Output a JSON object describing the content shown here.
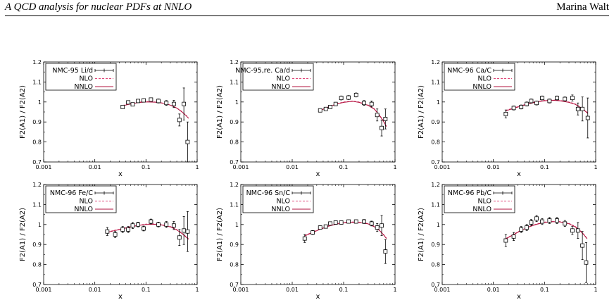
{
  "header": {
    "left": "A QCD analysis for nuclear PDFs at NNLO",
    "right": "Marina Walt"
  },
  "chart_data": [
    {
      "type": "scatter",
      "xscale": "log",
      "xlim": [
        0.001,
        1
      ],
      "ylim": [
        0.7,
        1.2
      ],
      "xticks": [
        "0.001",
        "0.01",
        "0.1",
        "1"
      ],
      "yticks": [
        "0.7",
        "0.8",
        "0.9",
        "1",
        "1.1",
        "1.2"
      ],
      "xlabel": "x",
      "ylabel": "F2(A1) / F2(A2)",
      "legend": "top-left",
      "data_name": "NMC-95 Li/d",
      "points": [
        [
          0.035,
          0.975,
          0.008
        ],
        [
          0.045,
          0.998,
          0.008
        ],
        [
          0.055,
          0.988,
          0.008
        ],
        [
          0.07,
          1.005,
          0.008
        ],
        [
          0.09,
          1.008,
          0.008
        ],
        [
          0.125,
          1.012,
          0.008
        ],
        [
          0.175,
          1.005,
          0.01
        ],
        [
          0.25,
          0.995,
          0.012
        ],
        [
          0.35,
          0.99,
          0.018
        ],
        [
          0.45,
          0.91,
          0.03
        ],
        [
          0.55,
          0.99,
          0.08
        ],
        [
          0.65,
          0.8,
          0.1
        ]
      ],
      "nlo": [
        [
          0.035,
          0.983
        ],
        [
          0.05,
          0.992
        ],
        [
          0.07,
          0.999
        ],
        [
          0.1,
          1.002
        ],
        [
          0.15,
          1.0
        ],
        [
          0.2,
          0.996
        ],
        [
          0.3,
          0.985
        ],
        [
          0.4,
          0.97
        ],
        [
          0.5,
          0.953
        ],
        [
          0.6,
          0.935
        ],
        [
          0.68,
          0.92
        ]
      ],
      "nnlo": [
        [
          0.035,
          0.981
        ],
        [
          0.05,
          0.99
        ],
        [
          0.07,
          0.997
        ],
        [
          0.1,
          1.0
        ],
        [
          0.15,
          0.999
        ],
        [
          0.2,
          0.995
        ],
        [
          0.3,
          0.984
        ],
        [
          0.4,
          0.969
        ],
        [
          0.5,
          0.951
        ],
        [
          0.6,
          0.933
        ],
        [
          0.68,
          0.918
        ]
      ]
    },
    {
      "type": "scatter",
      "xscale": "log",
      "xlim": [
        0.001,
        1
      ],
      "ylim": [
        0.7,
        1.2
      ],
      "xticks": [
        "0.001",
        "0.01",
        "0.1",
        "1"
      ],
      "yticks": [
        "0.7",
        "0.8",
        "0.9",
        "1",
        "1.1",
        "1.2"
      ],
      "xlabel": "x",
      "ylabel": "F2(A1) / F2(A2)",
      "legend": "top-left",
      "data_name": "NMC-95,re. Ca/d",
      "points": [
        [
          0.035,
          0.958,
          0.008
        ],
        [
          0.045,
          0.965,
          0.008
        ],
        [
          0.055,
          0.975,
          0.008
        ],
        [
          0.07,
          0.99,
          0.008
        ],
        [
          0.09,
          1.02,
          0.01
        ],
        [
          0.125,
          1.022,
          0.01
        ],
        [
          0.175,
          1.035,
          0.01
        ],
        [
          0.25,
          0.995,
          0.012
        ],
        [
          0.35,
          0.99,
          0.015
        ],
        [
          0.45,
          0.935,
          0.03
        ],
        [
          0.55,
          0.87,
          0.04
        ],
        [
          0.65,
          0.915,
          0.05
        ]
      ],
      "nlo": [
        [
          0.035,
          0.96
        ],
        [
          0.05,
          0.975
        ],
        [
          0.07,
          0.99
        ],
        [
          0.1,
          1.0
        ],
        [
          0.15,
          1.005
        ],
        [
          0.2,
          1.0
        ],
        [
          0.3,
          0.985
        ],
        [
          0.4,
          0.965
        ],
        [
          0.5,
          0.935
        ],
        [
          0.6,
          0.905
        ],
        [
          0.68,
          0.88
        ]
      ],
      "nnlo": [
        [
          0.035,
          0.958
        ],
        [
          0.05,
          0.973
        ],
        [
          0.07,
          0.988
        ],
        [
          0.1,
          0.998
        ],
        [
          0.15,
          1.003
        ],
        [
          0.2,
          0.998
        ],
        [
          0.3,
          0.983
        ],
        [
          0.4,
          0.963
        ],
        [
          0.5,
          0.932
        ],
        [
          0.6,
          0.902
        ],
        [
          0.68,
          0.877
        ]
      ]
    },
    {
      "type": "scatter",
      "xscale": "log",
      "xlim": [
        0.001,
        1
      ],
      "ylim": [
        0.7,
        1.2
      ],
      "xticks": [
        "0.001",
        "0.01",
        "0.1",
        "1"
      ],
      "yticks": [
        "0.7",
        "0.8",
        "0.9",
        "1",
        "1.1",
        "1.2"
      ],
      "xlabel": "x",
      "ylabel": "F2(A1) / F2(A2)",
      "legend": "top-left",
      "data_name": "NMC-96 Ca/C",
      "points": [
        [
          0.0175,
          0.94,
          0.02
        ],
        [
          0.025,
          0.97,
          0.01
        ],
        [
          0.035,
          0.975,
          0.01
        ],
        [
          0.045,
          0.99,
          0.01
        ],
        [
          0.055,
          1.005,
          0.01
        ],
        [
          0.07,
          0.995,
          0.01
        ],
        [
          0.09,
          1.02,
          0.01
        ],
        [
          0.125,
          1.005,
          0.01
        ],
        [
          0.175,
          1.02,
          0.01
        ],
        [
          0.25,
          1.015,
          0.01
        ],
        [
          0.35,
          1.02,
          0.015
        ],
        [
          0.45,
          0.965,
          0.03
        ],
        [
          0.55,
          0.965,
          0.06
        ],
        [
          0.7,
          0.92,
          0.1
        ]
      ],
      "nlo": [
        [
          0.0175,
          0.958
        ],
        [
          0.025,
          0.97
        ],
        [
          0.035,
          0.982
        ],
        [
          0.05,
          0.993
        ],
        [
          0.07,
          1.002
        ],
        [
          0.1,
          1.008
        ],
        [
          0.15,
          1.01
        ],
        [
          0.2,
          1.008
        ],
        [
          0.3,
          1.0
        ],
        [
          0.4,
          0.99
        ],
        [
          0.5,
          0.975
        ],
        [
          0.6,
          0.96
        ],
        [
          0.7,
          0.945
        ]
      ],
      "nnlo": [
        [
          0.0175,
          0.956
        ],
        [
          0.025,
          0.968
        ],
        [
          0.035,
          0.98
        ],
        [
          0.05,
          0.991
        ],
        [
          0.07,
          1.0
        ],
        [
          0.1,
          1.006
        ],
        [
          0.15,
          1.008
        ],
        [
          0.2,
          1.006
        ],
        [
          0.3,
          0.998
        ],
        [
          0.4,
          0.988
        ],
        [
          0.5,
          0.973
        ],
        [
          0.6,
          0.958
        ],
        [
          0.7,
          0.943
        ]
      ]
    },
    {
      "type": "scatter",
      "xscale": "log",
      "xlim": [
        0.001,
        1
      ],
      "ylim": [
        0.7,
        1.2
      ],
      "xticks": [
        "0.001",
        "0.01",
        "0.1",
        "1"
      ],
      "yticks": [
        "0.7",
        "0.8",
        "0.9",
        "1",
        "1.1",
        "1.2"
      ],
      "xlabel": "x",
      "ylabel": "F2(A1) / F2(A2)",
      "legend": "top-left",
      "data_name": "NMC-96 Fe/C",
      "points": [
        [
          0.0175,
          0.965,
          0.02
        ],
        [
          0.025,
          0.95,
          0.015
        ],
        [
          0.035,
          0.975,
          0.015
        ],
        [
          0.045,
          0.975,
          0.015
        ],
        [
          0.055,
          0.995,
          0.015
        ],
        [
          0.07,
          1.0,
          0.012
        ],
        [
          0.09,
          0.98,
          0.012
        ],
        [
          0.125,
          1.015,
          0.012
        ],
        [
          0.175,
          1.0,
          0.012
        ],
        [
          0.25,
          1.0,
          0.015
        ],
        [
          0.35,
          0.995,
          0.02
        ],
        [
          0.45,
          0.935,
          0.04
        ],
        [
          0.55,
          0.97,
          0.07
        ],
        [
          0.65,
          0.965,
          0.1
        ]
      ],
      "nlo": [
        [
          0.0175,
          0.963
        ],
        [
          0.025,
          0.972
        ],
        [
          0.035,
          0.98
        ],
        [
          0.05,
          0.99
        ],
        [
          0.07,
          0.997
        ],
        [
          0.1,
          1.002
        ],
        [
          0.15,
          1.003
        ],
        [
          0.2,
          1.0
        ],
        [
          0.3,
          0.99
        ],
        [
          0.4,
          0.975
        ],
        [
          0.5,
          0.958
        ],
        [
          0.6,
          0.94
        ],
        [
          0.68,
          0.928
        ]
      ],
      "nnlo": [
        [
          0.0175,
          0.961
        ],
        [
          0.025,
          0.97
        ],
        [
          0.035,
          0.978
        ],
        [
          0.05,
          0.988
        ],
        [
          0.07,
          0.995
        ],
        [
          0.1,
          1.0
        ],
        [
          0.15,
          1.001
        ],
        [
          0.2,
          0.998
        ],
        [
          0.3,
          0.988
        ],
        [
          0.4,
          0.973
        ],
        [
          0.5,
          0.956
        ],
        [
          0.6,
          0.938
        ],
        [
          0.68,
          0.926
        ]
      ]
    },
    {
      "type": "scatter",
      "xscale": "log",
      "xlim": [
        0.001,
        1
      ],
      "ylim": [
        0.7,
        1.2
      ],
      "xticks": [
        "0.001",
        "0.01",
        "0.1",
        "1"
      ],
      "yticks": [
        "0.7",
        "0.8",
        "0.9",
        "1",
        "1.1",
        "1.2"
      ],
      "xlabel": "x",
      "ylabel": "F2(A1) / F2(A2)",
      "legend": "top-left",
      "data_name": "NMC-96 Sn/C",
      "points": [
        [
          0.0175,
          0.93,
          0.02
        ],
        [
          0.025,
          0.96,
          0.01
        ],
        [
          0.035,
          0.985,
          0.008
        ],
        [
          0.045,
          0.99,
          0.008
        ],
        [
          0.055,
          1.005,
          0.008
        ],
        [
          0.07,
          1.01,
          0.008
        ],
        [
          0.09,
          1.01,
          0.008
        ],
        [
          0.125,
          1.015,
          0.008
        ],
        [
          0.175,
          1.015,
          0.008
        ],
        [
          0.25,
          1.015,
          0.01
        ],
        [
          0.35,
          1.005,
          0.012
        ],
        [
          0.45,
          0.985,
          0.02
        ],
        [
          0.55,
          0.995,
          0.05
        ],
        [
          0.65,
          0.865,
          0.06
        ]
      ],
      "nlo": [
        [
          0.0175,
          0.945
        ],
        [
          0.025,
          0.962
        ],
        [
          0.035,
          0.978
        ],
        [
          0.05,
          0.993
        ],
        [
          0.07,
          1.003
        ],
        [
          0.1,
          1.01
        ],
        [
          0.15,
          1.013
        ],
        [
          0.2,
          1.012
        ],
        [
          0.3,
          1.005
        ],
        [
          0.4,
          0.99
        ],
        [
          0.5,
          0.972
        ],
        [
          0.6,
          0.95
        ],
        [
          0.68,
          0.932
        ]
      ],
      "nnlo": [
        [
          0.0175,
          0.943
        ],
        [
          0.025,
          0.96
        ],
        [
          0.035,
          0.976
        ],
        [
          0.05,
          0.991
        ],
        [
          0.07,
          1.001
        ],
        [
          0.1,
          1.008
        ],
        [
          0.15,
          1.011
        ],
        [
          0.2,
          1.01
        ],
        [
          0.3,
          1.003
        ],
        [
          0.4,
          0.988
        ],
        [
          0.5,
          0.97
        ],
        [
          0.6,
          0.948
        ],
        [
          0.68,
          0.93
        ]
      ]
    },
    {
      "type": "scatter",
      "xscale": "log",
      "xlim": [
        0.001,
        1
      ],
      "ylim": [
        0.7,
        1.2
      ],
      "xticks": [
        "0.001",
        "0.01",
        "0.1",
        "1"
      ],
      "yticks": [
        "0.7",
        "0.8",
        "0.9",
        "1",
        "1.1",
        "1.2"
      ],
      "xlabel": "x",
      "ylabel": "F2(A1) / F2(A2)",
      "legend": "top-left",
      "data_name": "NMC-96 Pb/C",
      "points": [
        [
          0.0175,
          0.92,
          0.03
        ],
        [
          0.025,
          0.94,
          0.02
        ],
        [
          0.035,
          0.975,
          0.015
        ],
        [
          0.045,
          0.985,
          0.015
        ],
        [
          0.055,
          1.01,
          0.015
        ],
        [
          0.07,
          1.03,
          0.015
        ],
        [
          0.09,
          1.015,
          0.015
        ],
        [
          0.125,
          1.02,
          0.015
        ],
        [
          0.175,
          1.02,
          0.015
        ],
        [
          0.25,
          1.005,
          0.015
        ],
        [
          0.35,
          0.97,
          0.02
        ],
        [
          0.45,
          0.97,
          0.04
        ],
        [
          0.55,
          0.895,
          0.07
        ],
        [
          0.65,
          0.81,
          0.1
        ]
      ],
      "nlo": [
        [
          0.0175,
          0.93
        ],
        [
          0.025,
          0.952
        ],
        [
          0.035,
          0.972
        ],
        [
          0.05,
          0.99
        ],
        [
          0.07,
          1.003
        ],
        [
          0.1,
          1.012
        ],
        [
          0.15,
          1.016
        ],
        [
          0.2,
          1.015
        ],
        [
          0.3,
          1.006
        ],
        [
          0.4,
          0.99
        ],
        [
          0.5,
          0.97
        ],
        [
          0.6,
          0.948
        ],
        [
          0.68,
          0.93
        ]
      ],
      "nnlo": [
        [
          0.0175,
          0.928
        ],
        [
          0.025,
          0.95
        ],
        [
          0.035,
          0.97
        ],
        [
          0.05,
          0.988
        ],
        [
          0.07,
          1.001
        ],
        [
          0.1,
          1.01
        ],
        [
          0.15,
          1.014
        ],
        [
          0.2,
          1.013
        ],
        [
          0.3,
          1.004
        ],
        [
          0.4,
          0.988
        ],
        [
          0.5,
          0.968
        ],
        [
          0.6,
          0.946
        ],
        [
          0.68,
          0.928
        ]
      ]
    }
  ],
  "legend_labels": {
    "nlo": "NLO",
    "nnlo": "NNLO"
  },
  "colors": {
    "nlo": "#e0497a",
    "nnlo": "#b0103c",
    "axis": "#000000"
  }
}
